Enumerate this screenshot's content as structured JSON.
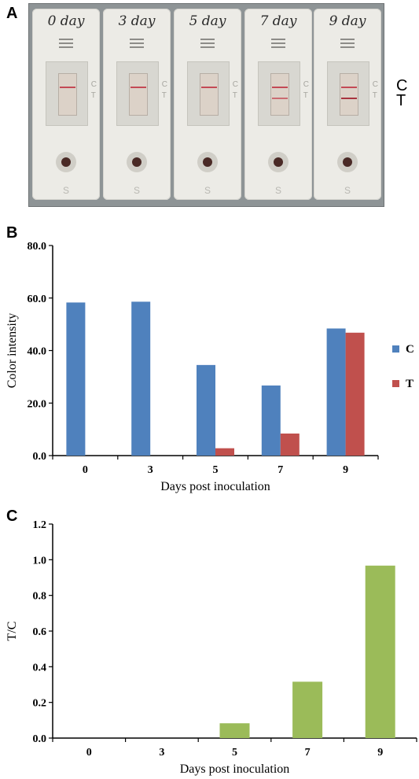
{
  "panels": {
    "a": "A",
    "b": "B",
    "c": "C"
  },
  "photo": {
    "strip_labels": [
      "0 day",
      "3 day",
      "5 day",
      "7 day",
      "9 day"
    ],
    "window_marks": [
      "C",
      "T"
    ],
    "sample_mark": "S",
    "side_labels": [
      "C",
      "T"
    ]
  },
  "colors": {
    "C": "#4f81bd",
    "T": "#c0504d",
    "ratio": "#9bbb59"
  },
  "chart_data": [
    {
      "type": "bar",
      "title": "",
      "xlabel": "Days post inoculation",
      "ylabel": "Color intensity",
      "categories": [
        "0",
        "3",
        "5",
        "7",
        "9"
      ],
      "series": [
        {
          "name": "C",
          "values": [
            58.3,
            58.6,
            34.5,
            26.7,
            48.4
          ]
        },
        {
          "name": "T",
          "values": [
            0.0,
            0.0,
            2.8,
            8.4,
            46.8
          ]
        }
      ],
      "ylim": [
        0,
        80
      ],
      "yticks": [
        "0.0",
        "20.0",
        "40.0",
        "60.0",
        "80.0"
      ],
      "legend": "right",
      "grid": false
    },
    {
      "type": "bar",
      "title": "",
      "xlabel": "Days post inoculation",
      "ylabel": "T/C",
      "categories": [
        "0",
        "3",
        "5",
        "7",
        "9"
      ],
      "series": [
        {
          "values": [
            0.0,
            0.0,
            0.083,
            0.316,
            0.967
          ]
        }
      ],
      "ylim": [
        0,
        1.2
      ],
      "yticks": [
        "0.0",
        "0.2",
        "0.4",
        "0.6",
        "0.8",
        "1.0",
        "1.2"
      ],
      "legend": "none",
      "grid": false
    }
  ]
}
